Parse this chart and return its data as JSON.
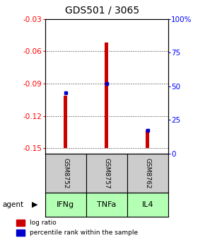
{
  "title": "GDS501 / 3065",
  "samples": [
    "GSM8752",
    "GSM8757",
    "GSM8762"
  ],
  "agents": [
    "IFNg",
    "TNFa",
    "IL4"
  ],
  "log_ratios": [
    -0.101,
    -0.052,
    -0.133
  ],
  "log_ratio_base": -0.15,
  "percentile_ranks": [
    45,
    52,
    17
  ],
  "ylim_left": [
    -0.155,
    -0.03
  ],
  "ylim_right": [
    0,
    100
  ],
  "yticks_left": [
    -0.15,
    -0.12,
    -0.09,
    -0.06,
    -0.03
  ],
  "yticks_right": [
    0,
    25,
    50,
    75,
    100
  ],
  "bar_color": "#cc0000",
  "percentile_color": "#0000cc",
  "agent_bg_color": "#b3ffb3",
  "sample_bg_color": "#cccccc",
  "title_fontsize": 10,
  "tick_fontsize": 7.5,
  "legend_fontsize": 6.5,
  "bar_width": 0.08
}
